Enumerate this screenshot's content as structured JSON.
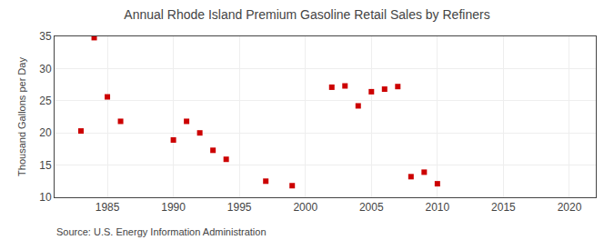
{
  "chart_data": {
    "type": "scatter",
    "title": "Annual Rhode Island Premium Gasoline Retail Sales by Refiners",
    "ylabel": "Thousand Gallons per Day",
    "annotations": [
      "Source: U.S. Energy Information Administration"
    ],
    "x": [
      1983,
      1984,
      1985,
      1986,
      1990,
      1991,
      1992,
      1993,
      1994,
      1997,
      1999,
      2002,
      2003,
      2004,
      2005,
      2006,
      2007,
      2008,
      2009,
      2010
    ],
    "values": [
      20.3,
      34.8,
      25.6,
      21.8,
      18.9,
      21.8,
      20.0,
      17.3,
      15.9,
      12.5,
      11.8,
      27.1,
      27.3,
      24.2,
      26.4,
      26.8,
      27.2,
      13.2,
      13.9,
      12.1
    ],
    "color": "#cc0000",
    "marker": "square",
    "xlim": [
      1981,
      2022
    ],
    "ylim": [
      10,
      35
    ],
    "xticks": [
      1985,
      1990,
      1995,
      2000,
      2005,
      2010,
      2015,
      2020
    ],
    "yticks": [
      10,
      15,
      20,
      25,
      30,
      35
    ],
    "grid": true
  }
}
